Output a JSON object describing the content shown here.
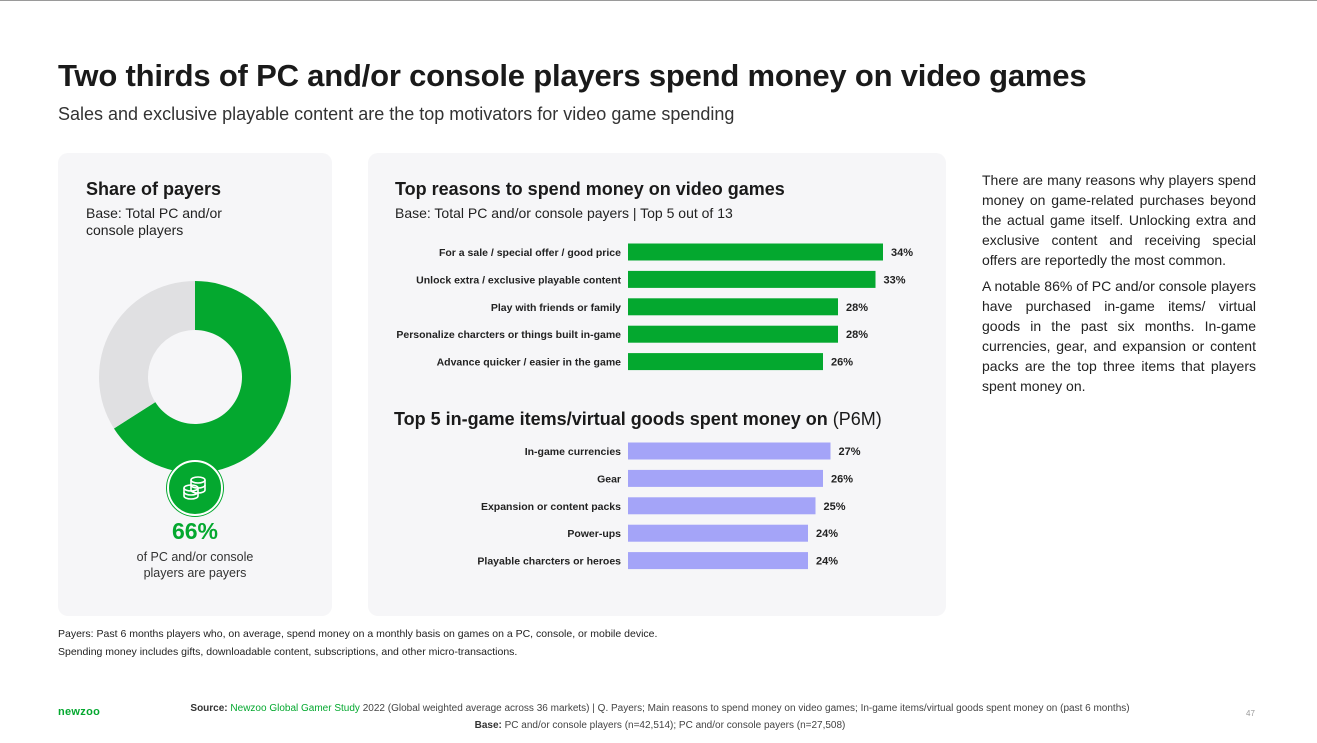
{
  "title": "Two thirds of PC and/or console players spend money on video games",
  "subtitle": "Sales and exclusive playable content are the top motivators for video game spending",
  "payers_card": {
    "title": "Share of payers",
    "base": "Base: Total PC and/or console players",
    "share": 0.66,
    "share_label": "66%",
    "caption": "of PC and/or console players are payers",
    "icon": "coins-icon"
  },
  "reasons_card": {
    "title": "Top reasons to spend money on video games",
    "base": "Base: Total PC and/or console payers | Top 5 out of 13",
    "items_title": "Top 5 in-game items/virtual goods spent money on",
    "items_title_suffix": "(P6M)"
  },
  "chart_data": [
    {
      "type": "donut",
      "title": "Share of payers",
      "values": [
        66,
        34
      ],
      "labels": [
        "66%",
        ""
      ],
      "colors": [
        "#04a82f",
        "#e0e0e2"
      ]
    },
    {
      "type": "bar",
      "orientation": "horizontal",
      "title": "Top reasons to spend money on video games",
      "categories": [
        "For a sale / special offer / good price",
        "Unlock extra / exclusive playable content",
        "Play with friends or family",
        "Personalize charcters or things built in-game",
        "Advance quicker / easier in the game"
      ],
      "values": [
        34,
        33,
        28,
        28,
        26
      ],
      "value_labels": [
        "34%",
        "33%",
        "28%",
        "28%",
        "26%"
      ],
      "color": "#04a82f"
    },
    {
      "type": "bar",
      "orientation": "horizontal",
      "title": "Top 5 in-game items/virtual goods spent money on (P6M)",
      "categories": [
        "In-game currencies",
        "Gear",
        "Expansion or content packs",
        "Power-ups",
        "Playable charcters or heroes"
      ],
      "values": [
        27,
        26,
        25,
        24,
        24
      ],
      "value_labels": [
        "27%",
        "26%",
        "25%",
        "24%",
        "24%"
      ],
      "color": "#a4a4f8"
    }
  ],
  "side": {
    "p1": "There are many reasons why players spend money on game-related purchases beyond the actual game itself. Unlocking extra and exclusive content and receiving special offers are reportedly the most common.",
    "p2": "A notable 86% of PC and/or console players have purchased in-game items/ virtual goods in the past six months. In-game currencies, gear, and expansion or content packs are the top three items that players spent money on."
  },
  "notes": {
    "line1": "Payers: Past 6 months players who, on average, spend money on a monthly basis on games on a PC, console, or mobile device.",
    "line2": "Spending money includes gifts, downloadable content, subscriptions, and other micro-transactions."
  },
  "footer": {
    "logo": "newzoo",
    "source_label": "Source:",
    "source_name": "Newzoo Global Gamer Study",
    "source_rest": "2022 (Global weighted average across 36 markets)  |  Q. Payers; Main reasons to spend money on video games; In-game items/virtual goods spent money on (past 6 months)",
    "base_label": "Base:",
    "base_text": "PC and/or console players (n=42,514); PC and/or console payers (n=27,508)",
    "page": "47"
  }
}
